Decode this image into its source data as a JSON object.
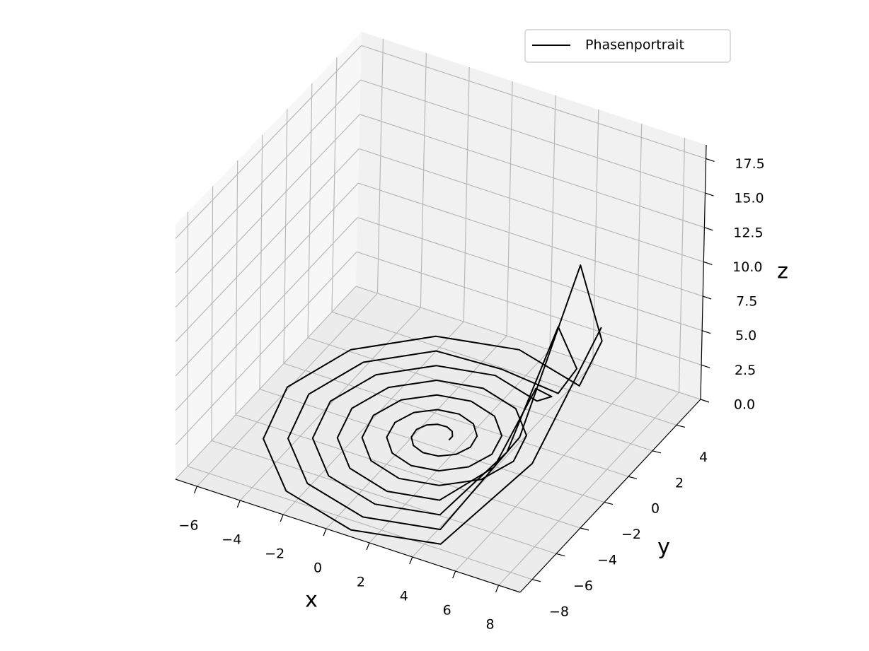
{
  "chart_data": {
    "type": "line3d",
    "xlabel": "x",
    "ylabel": "y",
    "zlabel": "z",
    "xlim": [
      -7,
      9
    ],
    "ylim": [
      -9,
      6
    ],
    "zlim": [
      0,
      18.5
    ],
    "xticks": [
      {
        "value": -6,
        "label": "−6"
      },
      {
        "value": -4,
        "label": "−4"
      },
      {
        "value": -2,
        "label": "−2"
      },
      0,
      2,
      4,
      6,
      8
    ],
    "yticks": [
      {
        "value": -8,
        "label": "−8"
      },
      {
        "value": -6,
        "label": "−6"
      },
      {
        "value": -4,
        "label": "−4"
      },
      {
        "value": -2,
        "label": "−2"
      },
      0,
      2,
      4
    ],
    "zticks": [
      {
        "value": 0,
        "label": "0.0"
      },
      {
        "value": 2.5,
        "label": "2.5"
      },
      {
        "value": 5,
        "label": "5.0"
      },
      {
        "value": 7.5,
        "label": "7.5"
      },
      {
        "value": 10,
        "label": "10.0"
      },
      {
        "value": 12.5,
        "label": "12.5"
      },
      {
        "value": 15,
        "label": "15.0"
      },
      {
        "value": 17.5,
        "label": "17.5"
      }
    ],
    "grid": true,
    "legend": "upper right",
    "series": [
      {
        "name": "Phasenportrait",
        "color": "#000000",
        "x": [
          1.5,
          1.505,
          1.333,
          1,
          0.583,
          0.206,
          0,
          0.062,
          0.417,
          1,
          1.667,
          2.227,
          2.5,
          2.371,
          1.833,
          1,
          0.083,
          -0.66,
          -1,
          -0.804,
          -0.083,
          1,
          2.167,
          3.093,
          3.5,
          3.237,
          2.333,
          1,
          -0.417,
          -1.526,
          -2,
          -1.67,
          -0.583,
          1,
          2.667,
          3.959,
          4.5,
          4.103,
          2.833,
          1,
          -0.917,
          -2.392,
          -3,
          -2.536,
          -1.083,
          1,
          3.167,
          4.825,
          5.5,
          4.969,
          3.333,
          1,
          -1.417,
          -3.258,
          -4,
          -3.402,
          -1.583,
          1,
          3.667,
          5.691,
          6.5,
          5.835,
          3.833,
          1,
          -1.917,
          -4.124,
          -5,
          -4.268,
          -2.083,
          1,
          4.167,
          6.557,
          7.5,
          6.701,
          4.333,
          1,
          -2.417,
          -4.99,
          -6,
          -5.134,
          -2.583,
          1,
          4.667,
          7.423,
          8.5
        ],
        "y": [
          -1.5,
          -1.208,
          -0.923,
          -0.75,
          -0.778,
          -1.042,
          -1.5,
          -2.042,
          -2.51,
          -2.75,
          -2.654,
          -2.208,
          -1.5,
          -0.708,
          -0.056,
          0.25,
          0.088,
          -0.542,
          -1.5,
          -2.542,
          -3.376,
          -3.75,
          -3.521,
          -2.708,
          -1.5,
          -0.208,
          0.809,
          1.25,
          0.953,
          -0.042,
          -1.5,
          -3.042,
          -4.242,
          -4.75,
          -4.387,
          -3.208,
          -1.5,
          0.292,
          1.676,
          2.25,
          1.819,
          0.458,
          -1.5,
          -3.542,
          -5.108,
          -5.75,
          -5.252,
          -3.708,
          -1.5,
          0.792,
          2.542,
          3.25,
          2.685,
          0.958,
          -1.5,
          -4.042,
          -5.974,
          -6.75,
          -6.118,
          -4.208,
          -1.5,
          1.292,
          3.408,
          3.75,
          3.551,
          1.458,
          -1.5,
          -4.542,
          -6.84,
          -7.75,
          -6.984,
          -4.708,
          -1.5,
          1.792,
          4.274,
          5.25,
          4.417,
          1.958,
          -1.5,
          -5.042,
          -7.706,
          -8.75,
          -7.85,
          -5.208,
          -1.5
        ],
        "z": [
          0.2,
          0.2,
          0.2,
          0.2,
          0.2,
          0.2,
          0.2,
          0.2,
          0.2,
          0.2,
          0.2,
          0.2,
          0.2,
          0.2,
          0.2,
          0.2,
          0.2,
          0.2,
          0.2,
          0.2,
          0.2,
          0.2,
          0.2,
          0.2,
          0.2,
          0.2,
          0.2,
          0.2,
          0.2,
          0.2,
          0.2,
          0.2,
          0.2,
          0.2,
          0.2,
          0.2,
          0.2,
          0.2,
          0.2,
          0.2,
          0.2,
          0.2,
          0.2,
          0.2,
          0.2,
          0.2,
          0.2,
          2,
          6,
          3,
          0.2,
          0.2,
          0.2,
          0.2,
          0.2,
          0.2,
          0.2,
          0.2,
          0.2,
          4,
          11,
          5,
          0.2,
          0.2,
          0.2,
          0.2,
          0.2,
          0.2,
          0.2,
          0.2,
          0.2,
          6,
          16,
          7,
          0.2,
          0.2,
          0.2,
          0.2,
          0.2,
          0.2,
          0.2,
          0.2,
          0.2,
          5,
          12
        ]
      }
    ]
  }
}
